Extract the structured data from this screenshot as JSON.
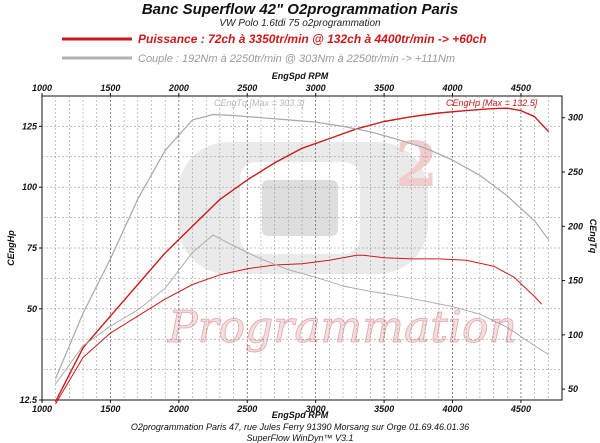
{
  "chart_data": {
    "type": "line",
    "title": "Banc Superflow 42\" O2programmation Paris",
    "subtitle": "VW Polo 1.6tdi 75 o2programmation",
    "legend": [
      {
        "label": "Puissance : 72ch à 3350tr/min @ 132ch à 4400tr/min  -> +60ch",
        "color": "#cc1a1a"
      },
      {
        "label": "Couple : 192Nm à 2250tr/min @ 303Nm à 2250tr/min -> +111Nm",
        "color": "#a8a8a8"
      }
    ],
    "xlabel": "EngSpd RPM",
    "ylabel_left": "CEngHp",
    "ylabel_right": "CEngTq",
    "xlim": [
      1000,
      4800
    ],
    "ylim_left": [
      12.5,
      137.5
    ],
    "ylim_right": [
      40,
      320
    ],
    "x_ticks": [
      1000,
      1500,
      2000,
      2500,
      3000,
      3500,
      4000,
      4500
    ],
    "y_left_ticks": [
      12.5,
      50,
      75,
      100,
      125
    ],
    "y_right_ticks": [
      50,
      100,
      150,
      200,
      250,
      300
    ],
    "annotations": [
      {
        "text": "CEngHp [Max = 132.5]",
        "color": "#cc1a1a"
      },
      {
        "text": "CEngTq [Max = 303.3]",
        "color": "#b8b8b8"
      }
    ],
    "footer": [
      "O2programmation Paris 47, rue Jules Ferry 91390 Morsang sur Orge 01.69.46.01.36",
      "SuperFlow WinDyn™ V3.1"
    ],
    "watermark": "Programmation",
    "series": [
      {
        "name": "Puissance",
        "axis": "left",
        "color": "#cc1a1a",
        "width": 1.4,
        "x": [
          1100,
          1300,
          1500,
          1700,
          1900,
          2100,
          2300,
          2500,
          2700,
          2900,
          3100,
          3300,
          3500,
          3700,
          3900,
          4100,
          4300,
          4400,
          4500,
          4600,
          4700
        ],
        "y": [
          12,
          34,
          47,
          60,
          73,
          84,
          95,
          103,
          110,
          116,
          120,
          124,
          127,
          129,
          130.5,
          131.5,
          132.3,
          132.5,
          131.5,
          129,
          123
        ]
      },
      {
        "name": "Puissance (origine)",
        "axis": "left",
        "color": "#cc1a1a",
        "width": 1.0,
        "x": [
          1100,
          1300,
          1500,
          1700,
          1900,
          2100,
          2300,
          2500,
          2700,
          2900,
          3100,
          3300,
          3350,
          3500,
          3700,
          3900,
          4100,
          4300,
          4450,
          4600,
          4650
        ],
        "y": [
          11,
          30,
          40,
          47,
          54,
          60,
          64,
          66.5,
          68,
          68.5,
          70,
          72,
          72,
          71,
          70.5,
          70.5,
          70,
          67.5,
          63,
          55,
          52
        ]
      },
      {
        "name": "Couple",
        "axis": "right",
        "color": "#a8a8a8",
        "width": 1.2,
        "x": [
          1100,
          1300,
          1500,
          1700,
          1900,
          2100,
          2250,
          2400,
          2600,
          2800,
          3000,
          3200,
          3400,
          3600,
          3800,
          4000,
          4200,
          4400,
          4600,
          4700
        ],
        "y": [
          60,
          120,
          170,
          225,
          270,
          298,
          303,
          302,
          300,
          298,
          296,
          292,
          287,
          280,
          272,
          261,
          247,
          228,
          205,
          188
        ]
      },
      {
        "name": "Couple (origine)",
        "axis": "right",
        "color": "#a8a8a8",
        "width": 0.9,
        "x": [
          1100,
          1300,
          1500,
          1700,
          1900,
          2100,
          2250,
          2400,
          2600,
          2800,
          3000,
          3200,
          3400,
          3600,
          3800,
          4000,
          4200,
          4400,
          4600,
          4700
        ],
        "y": [
          55,
          90,
          108,
          123,
          143,
          176,
          192,
          182,
          170,
          160,
          153,
          145,
          140,
          136,
          131,
          126,
          119,
          107,
          90,
          82
        ]
      }
    ]
  }
}
